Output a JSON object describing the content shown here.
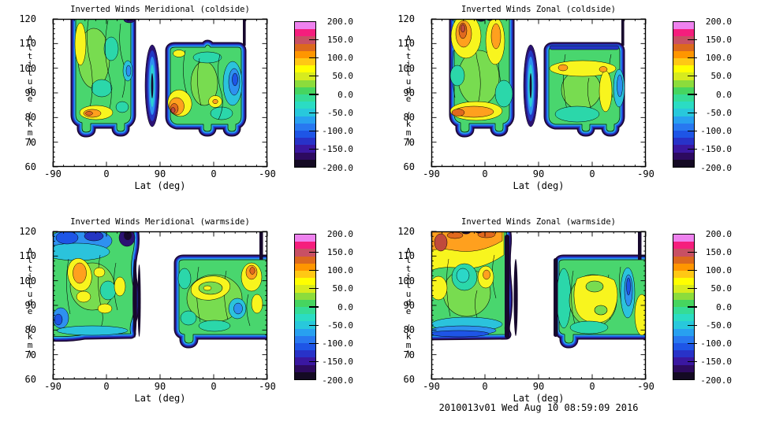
{
  "figure": {
    "footer": "2010013v01 Wed Aug 10 08:59:09 2016",
    "background": "#ffffff"
  },
  "axis": {
    "x_label": "Lat (deg)",
    "y_label": "Altitude (km)",
    "x_tick_labels": [
      "-90",
      "0",
      "90",
      "0",
      "-90"
    ],
    "y_tick_labels": [
      "120",
      "110",
      "100",
      "90",
      "80",
      "70",
      "60"
    ]
  },
  "colorbar": {
    "tick_labels": [
      "200.0",
      "150.0",
      "100.0",
      "50.0",
      "0.0",
      "-50.0",
      "-100.0",
      "-150.0",
      "-200.0"
    ],
    "value_range": [
      -200,
      200
    ],
    "colors_bottom_to_top": [
      "#140A23",
      "#2D0A5F",
      "#3A17A0",
      "#2832C8",
      "#1E55E6",
      "#2878F0",
      "#28A0F0",
      "#28C8DC",
      "#2BDCC3",
      "#35DC96",
      "#46D55F",
      "#8CDC3C",
      "#D7EB1E",
      "#FFFF00",
      "#FFC814",
      "#FF9600",
      "#DC691E",
      "#C85064",
      "#F51E7D",
      "#EE82EE"
    ]
  },
  "panels": [
    {
      "id": "meridional-coldside",
      "title": "Inverted Winds Meridional (coldside)"
    },
    {
      "id": "zonal-coldside",
      "title": "Inverted Winds Zonal (coldside)"
    },
    {
      "id": "meridional-warmside",
      "title": "Inverted Winds Meridional (warmside)"
    },
    {
      "id": "zonal-warmside",
      "title": "Inverted Winds Zonal (warmside)"
    }
  ],
  "chart_data": [
    {
      "type": "filled_contour",
      "title": "Inverted Winds Meridional (coldside)",
      "xlabel": "Lat (deg)",
      "ylabel": "Altitude (km)",
      "x_tick_values": [
        -90,
        0,
        90,
        0,
        -90
      ],
      "x_axis_note": "latitude sweeps -90 to 90 then back to -90 (ascending/descending sides)",
      "ylim": [
        60,
        120
      ],
      "value_range": [
        -200,
        200
      ],
      "colorbar_tick_step": 50,
      "data_extent_note": "data fills ~75-120 km; gap near lat 70-90 on first sweep; narrow blue/cyan blob in gap near lat 85",
      "features_estimated": [
        "background mostly -75 to 0 (green/teal) from 78-120 km",
        "yellow streak ~0 to +50 near lat -60, 95-120 km (first sweep)",
        "yellow/orange maximum +25 to +75 near 83 km, lat -30..0 (first sweep)",
        "orange maximum +50 to +100 near 85 km just after polar gap (second sweep)",
        "cyan/blue minimum -75 to -125 near lat -40..-60, 60-110 km (second sweep)",
        "dark boundary values < -175 rim all data edges near 75 km"
      ]
    },
    {
      "type": "filled_contour",
      "title": "Inverted Winds Zonal (coldside)",
      "xlabel": "Lat (deg)",
      "ylabel": "Altitude (km)",
      "x_tick_values": [
        -90,
        0,
        90,
        0,
        -90
      ],
      "ylim": [
        60,
        120
      ],
      "value_range": [
        -200,
        200
      ],
      "colorbar_tick_step": 50,
      "features_estimated": [
        "orange maxima +50 to +100 near 110-120 km at lat -60..-30 and lat 0..30 (first sweep)",
        "strong orange band +50 to +100 near 80-85 km across first sweep",
        "yellow band ~+25 near 95-105 km across second sweep",
        "teal/cyan -50 to -100 at low altitudes and right edge",
        "dark boundary values < -175 rim data edges near 75 km and top of second sweep"
      ]
    },
    {
      "type": "filled_contour",
      "title": "Inverted Winds Meridional (warmside)",
      "xlabel": "Lat (deg)",
      "ylabel": "Altitude (km)",
      "x_tick_values": [
        -90,
        0,
        90,
        0,
        -90
      ],
      "ylim": [
        60,
        120
      ],
      "value_range": [
        -200,
        200
      ],
      "colorbar_tick_step": 50,
      "data_extent_note": "first sweep fills from lat -90; gap near lat 55-105; second sweep tops out near 109 km",
      "features_estimated": [
        "blue/dark minimum -100 to -175 at 110-120 km near lat -90..-50 (first sweep)",
        "orange maximum +50 to +75 near 100-105 km, lat -50 (first sweep)",
        "scattered yellow cells 0 to +25 through 85-105 km",
        "orange spot +50 to +100 near 100 km at far right edge (lat -75, second sweep)",
        "cyan/blue pocket -75 to -100 near 88 km mid second sweep",
        "near-black vertical data-edge stripes at lat ~55 and ~-85"
      ]
    },
    {
      "type": "filled_contour",
      "title": "Inverted Winds Zonal (warmside)",
      "xlabel": "Lat (deg)",
      "ylabel": "Altitude (km)",
      "x_tick_values": [
        -90,
        0,
        90,
        0,
        -90
      ],
      "ylim": [
        60,
        120
      ],
      "value_range": [
        -200,
        200
      ],
      "colorbar_tick_step": 50,
      "features_estimated": [
        "broad orange maximum +50 to +100 at 108-120 km, lat -90..-10 (first sweep) with brick-red core near lat -80",
        "teal pocket -50 near 95-100 km mid first sweep",
        "large yellow region ~0 to +25 at 82-100 km across second sweep",
        "yellow column at far right edge (lat -90) 78-100 km",
        "blue band -100 to -150 near 78-82 km on first sweep",
        "near-black vertical data-edge stripes at lat ~55 and sweep boundaries"
      ]
    }
  ]
}
